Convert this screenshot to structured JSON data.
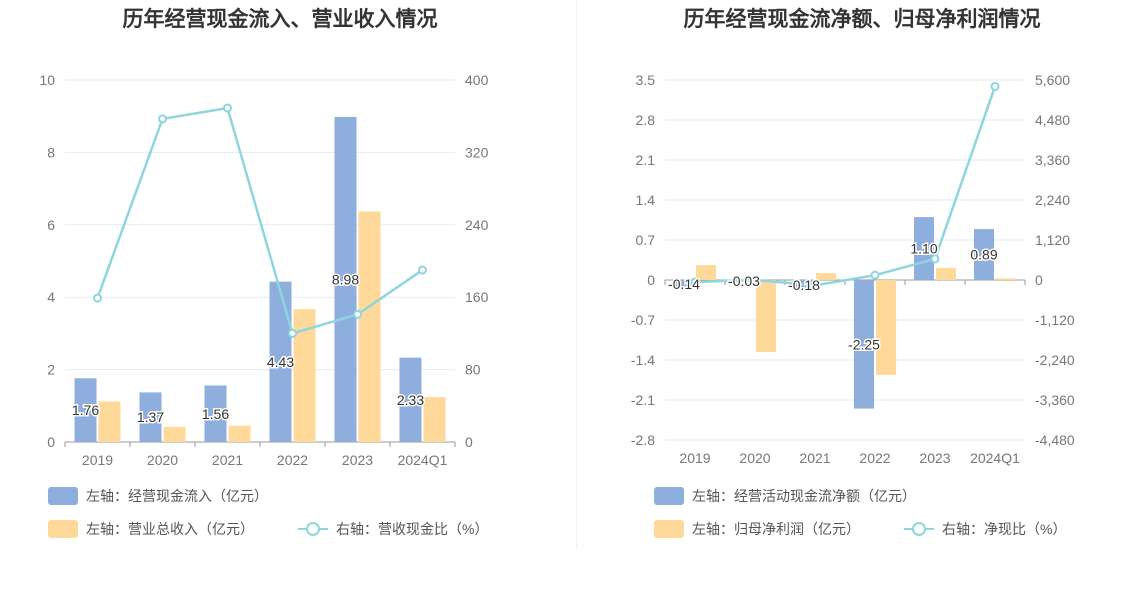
{
  "colors": {
    "primary_bar": "#8eaedd",
    "secondary_bar": "#ffd99a",
    "line": "#8dd6dd",
    "grid": "#e6eaf5",
    "axis": "#999999"
  },
  "chart_data": [
    {
      "type": "bar",
      "title": "历年经营现金流入、营业收入情况",
      "categories": [
        "2019",
        "2020",
        "2021",
        "2022",
        "2023",
        "2024Q1"
      ],
      "y_left": {
        "ticks": [
          "0",
          "2",
          "4",
          "6",
          "8",
          "10"
        ],
        "range": [
          0,
          10
        ]
      },
      "y_right": {
        "ticks": [
          "0",
          "80",
          "160",
          "240",
          "320",
          "400"
        ],
        "range": [
          0,
          400
        ]
      },
      "series": [
        {
          "name": "左轴：经营现金流入（亿元）",
          "type": "bar",
          "axis": "left",
          "values": [
            1.76,
            1.37,
            1.56,
            4.43,
            8.98,
            2.33
          ],
          "labels": [
            "1.76",
            "1.37",
            "1.56",
            "4.43",
            "8.98",
            "2.33"
          ]
        },
        {
          "name": "左轴：营业总收入（亿元）",
          "type": "bar",
          "axis": "left",
          "values": [
            1.12,
            0.42,
            0.45,
            3.67,
            6.37,
            1.24
          ]
        },
        {
          "name": "右轴：营收现金比（%）",
          "type": "line",
          "axis": "right",
          "values": [
            159,
            357,
            369,
            120,
            141,
            190
          ]
        }
      ],
      "legend_position": "bottom-left",
      "grid": true
    },
    {
      "type": "bar",
      "title": "历年经营现金流净额、归母净利润情况",
      "categories": [
        "2019",
        "2020",
        "2021",
        "2022",
        "2023",
        "2024Q1"
      ],
      "y_left": {
        "ticks": [
          "-2.8",
          "-2.1",
          "-1.4",
          "-0.7",
          "0",
          "0.7",
          "1.4",
          "2.1",
          "2.8",
          "3.5"
        ],
        "range": [
          -2.8,
          3.5
        ]
      },
      "y_right": {
        "ticks": [
          "-4,480",
          "-3,360",
          "-2,240",
          "-1,120",
          "0",
          "1,120",
          "2,240",
          "3,360",
          "4,480",
          "5,600"
        ],
        "range": [
          -4480,
          5600
        ]
      },
      "series": [
        {
          "name": "左轴：经营活动现金流净额（亿元）",
          "type": "bar",
          "axis": "left",
          "values": [
            -0.14,
            -0.03,
            -0.18,
            -2.25,
            1.1,
            0.89
          ],
          "labels": [
            "-0.14",
            "-0.03",
            "-0.18",
            "-2.25",
            "1.10",
            "0.89"
          ]
        },
        {
          "name": "左轴：归母净利润（亿元）",
          "type": "bar",
          "axis": "left",
          "values": [
            0.26,
            -1.26,
            0.12,
            -1.66,
            0.21,
            0.03
          ]
        },
        {
          "name": "右轴：净现比（%）",
          "type": "line",
          "axis": "right",
          "values": [
            -55,
            2,
            -150,
            135,
            590,
            5420
          ]
        }
      ],
      "legend_position": "bottom-left",
      "grid": true
    }
  ]
}
